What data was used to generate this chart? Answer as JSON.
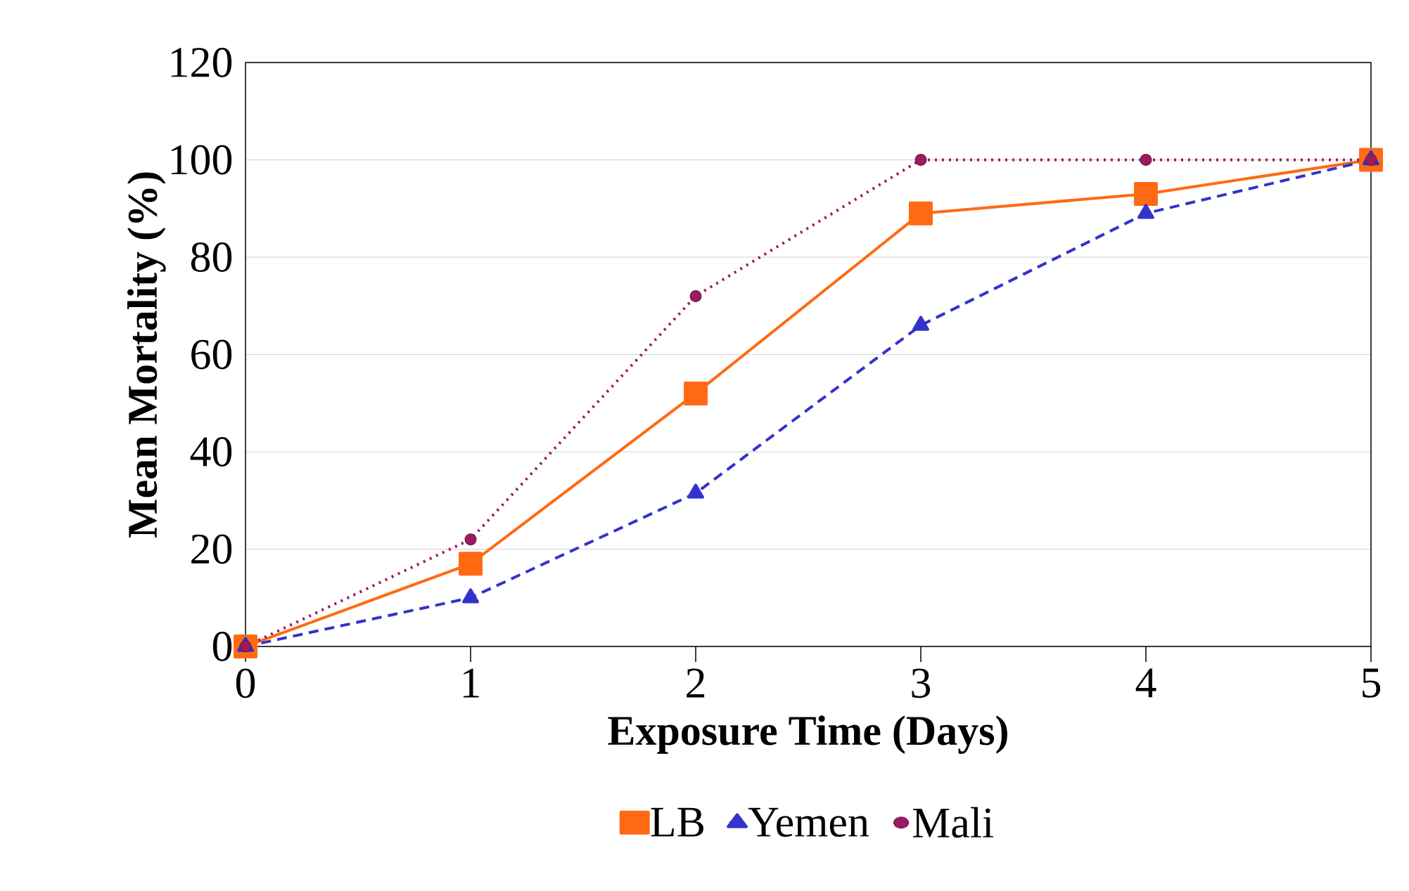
{
  "chart_data": {
    "type": "line",
    "xlabel": "Exposure Time (Days)",
    "ylabel": "Mean Mortality (%)",
    "x": [
      0,
      1,
      2,
      3,
      4,
      5
    ],
    "series": [
      {
        "name": "LB",
        "color": "#ff6a13",
        "values": [
          0,
          17,
          52,
          89,
          93,
          100
        ],
        "marker": "square",
        "line_style": "solid"
      },
      {
        "name": "Yemen",
        "color": "#3333cc",
        "values": [
          0,
          10,
          31.5,
          66,
          89,
          100
        ],
        "marker": "triangle",
        "line_style": "dashed"
      },
      {
        "name": "Mali",
        "color": "#9b1b62",
        "values": [
          0,
          22,
          72,
          100,
          100,
          100
        ],
        "marker": "circle",
        "line_style": "dotted"
      }
    ],
    "xlim": [
      0,
      5
    ],
    "xticks": [
      0,
      1,
      2,
      3,
      4,
      5
    ],
    "ylim": [
      0,
      120
    ],
    "yticks": [
      0,
      20,
      40,
      60,
      80,
      100,
      120
    ],
    "grid": "y",
    "legend": "bottom"
  }
}
